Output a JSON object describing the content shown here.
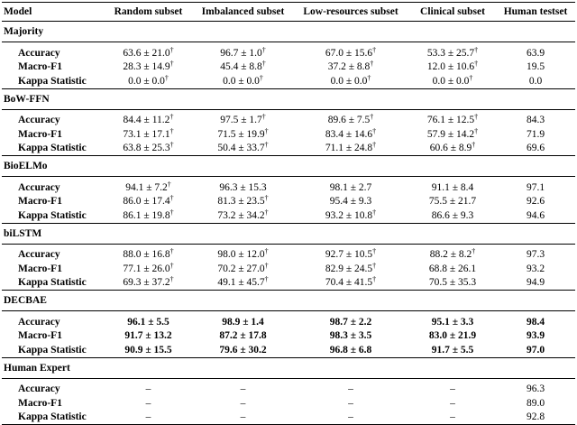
{
  "table": {
    "columns": [
      "Model",
      "Random subset",
      "Imbalanced subset",
      "Low-resources subset",
      "Clinical subset",
      "Human testset"
    ],
    "groups": [
      {
        "name": "Majority",
        "rows": [
          {
            "label": "Accuracy",
            "cells": [
              {
                "text": "63.6 ± 21.0",
                "sup": "†"
              },
              {
                "text": "96.7 ± 1.0",
                "sup": "†"
              },
              {
                "text": "67.0 ± 15.6",
                "sup": "†"
              },
              {
                "text": "53.3 ± 25.7",
                "sup": "†"
              },
              {
                "text": "63.9"
              }
            ]
          },
          {
            "label": "Macro-F1",
            "cells": [
              {
                "text": "28.3 ± 14.9",
                "sup": "†"
              },
              {
                "text": "45.4 ± 8.8",
                "sup": "†"
              },
              {
                "text": "37.2 ± 8.8",
                "sup": "†"
              },
              {
                "text": "12.0 ± 10.6",
                "sup": "†"
              },
              {
                "text": "19.5"
              }
            ]
          },
          {
            "label": "Kappa Statistic",
            "cells": [
              {
                "text": "0.0 ± 0.0",
                "sup": "†"
              },
              {
                "text": "0.0 ± 0.0",
                "sup": "†"
              },
              {
                "text": "0.0 ± 0.0",
                "sup": "†"
              },
              {
                "text": "0.0 ± 0.0",
                "sup": "†"
              },
              {
                "text": "0.0"
              }
            ]
          }
        ]
      },
      {
        "name": "BoW-FFN",
        "rows": [
          {
            "label": "Accuracy",
            "cells": [
              {
                "text": "84.4 ± 11.2",
                "sup": "†"
              },
              {
                "text": "97.5 ± 1.7",
                "sup": "†"
              },
              {
                "text": "89.6 ± 7.5",
                "sup": "†"
              },
              {
                "text": "76.1 ± 12.5",
                "sup": "†"
              },
              {
                "text": "84.3"
              }
            ]
          },
          {
            "label": "Macro-F1",
            "cells": [
              {
                "text": "73.1 ± 17.1",
                "sup": "†"
              },
              {
                "text": "71.5 ± 19.9",
                "sup": "†"
              },
              {
                "text": "83.4 ± 14.6",
                "sup": "†"
              },
              {
                "text": "57.9 ± 14.2",
                "sup": "†"
              },
              {
                "text": "71.9"
              }
            ]
          },
          {
            "label": "Kappa Statistic",
            "cells": [
              {
                "text": "63.8 ± 25.3",
                "sup": "†"
              },
              {
                "text": "50.4 ± 33.7",
                "sup": "†"
              },
              {
                "text": "71.1 ± 24.8",
                "sup": "†"
              },
              {
                "text": "60.6 ± 8.9",
                "sup": "†"
              },
              {
                "text": "69.6"
              }
            ]
          }
        ]
      },
      {
        "name": "BioELMo",
        "rows": [
          {
            "label": "Accuracy",
            "cells": [
              {
                "text": "94.1 ± 7.2",
                "sup": "†"
              },
              {
                "text": "96.3 ± 15.3"
              },
              {
                "text": "98.1 ± 2.7"
              },
              {
                "text": "91.1 ± 8.4"
              },
              {
                "text": "97.1"
              }
            ]
          },
          {
            "label": "Macro-F1",
            "cells": [
              {
                "text": "86.0 ± 17.4",
                "sup": "†"
              },
              {
                "text": "81.3 ± 23.5",
                "sup": "†"
              },
              {
                "text": "95.4 ± 9.3"
              },
              {
                "text": "75.5 ± 21.7"
              },
              {
                "text": "92.6"
              }
            ]
          },
          {
            "label": "Kappa Statistic",
            "cells": [
              {
                "text": "86.1 ± 19.8",
                "sup": "†"
              },
              {
                "text": "73.2 ± 34.2",
                "sup": "†"
              },
              {
                "text": "93.2 ± 10.8",
                "sup": "†"
              },
              {
                "text": "86.6 ± 9.3"
              },
              {
                "text": "94.6"
              }
            ]
          }
        ]
      },
      {
        "name": "biLSTM",
        "rows": [
          {
            "label": "Accuracy",
            "cells": [
              {
                "text": "88.0 ± 16.8",
                "sup": "†"
              },
              {
                "text": "98.0 ± 12.0",
                "sup": "†"
              },
              {
                "text": "92.7 ± 10.5",
                "sup": "†"
              },
              {
                "text": "88.2 ± 8.2",
                "sup": "†"
              },
              {
                "text": "97.3"
              }
            ]
          },
          {
            "label": "Macro-F1",
            "cells": [
              {
                "text": "77.1 ± 26.0",
                "sup": "†"
              },
              {
                "text": "70.2 ± 27.0",
                "sup": "†"
              },
              {
                "text": "82.9 ± 24.5",
                "sup": "†"
              },
              {
                "text": "68.8 ± 26.1"
              },
              {
                "text": "93.2"
              }
            ]
          },
          {
            "label": "Kappa Statistic",
            "cells": [
              {
                "text": "69.3 ± 37.2",
                "sup": "†"
              },
              {
                "text": "49.1 ± 45.7",
                "sup": "†"
              },
              {
                "text": "70.4 ± 41.5",
                "sup": "†"
              },
              {
                "text": "70.5 ± 35.3"
              },
              {
                "text": "94.9"
              }
            ]
          }
        ]
      },
      {
        "name": "DECBAE",
        "bold": true,
        "rows": [
          {
            "label": "Accuracy",
            "cells": [
              {
                "text": "96.1 ± 5.5"
              },
              {
                "text": "98.9 ± 1.4"
              },
              {
                "text": "98.7 ± 2.2"
              },
              {
                "text": "95.1 ± 3.3"
              },
              {
                "text": "98.4"
              }
            ]
          },
          {
            "label": "Macro-F1",
            "cells": [
              {
                "text": "91.7 ± 13.2"
              },
              {
                "text": "87.2 ± 17.8"
              },
              {
                "text": "98.3 ± 3.5"
              },
              {
                "text": "83.0 ± 21.9"
              },
              {
                "text": "93.9"
              }
            ]
          },
          {
            "label": "Kappa Statistic",
            "cells": [
              {
                "text": "90.9 ± 15.5"
              },
              {
                "text": "79.6 ± 30.2"
              },
              {
                "text": "96.8 ± 6.8"
              },
              {
                "text": "91.7 ± 5.5"
              },
              {
                "text": "97.0"
              }
            ]
          }
        ]
      },
      {
        "name": "Human Expert",
        "rows": [
          {
            "label": "Accuracy",
            "cells": [
              {
                "text": "–"
              },
              {
                "text": "–"
              },
              {
                "text": "–"
              },
              {
                "text": "–"
              },
              {
                "text": "96.3"
              }
            ]
          },
          {
            "label": "Macro-F1",
            "cells": [
              {
                "text": "–"
              },
              {
                "text": "–"
              },
              {
                "text": "–"
              },
              {
                "text": "–"
              },
              {
                "text": "89.0"
              }
            ]
          },
          {
            "label": "Kappa Statistic",
            "cells": [
              {
                "text": "–"
              },
              {
                "text": "–"
              },
              {
                "text": "–"
              },
              {
                "text": "–"
              },
              {
                "text": "92.8"
              }
            ]
          }
        ]
      }
    ]
  }
}
